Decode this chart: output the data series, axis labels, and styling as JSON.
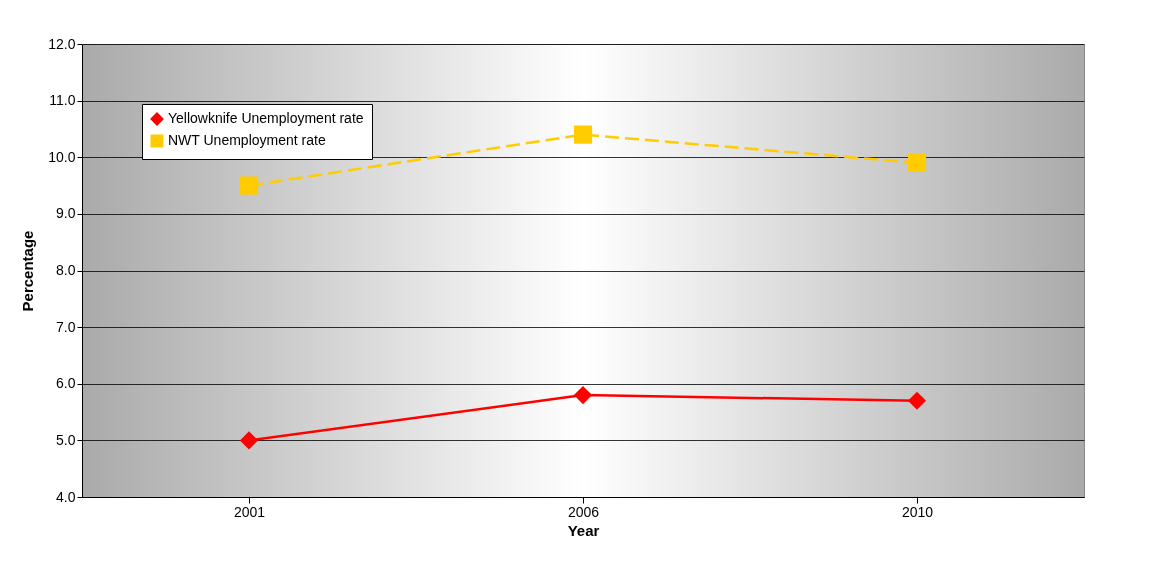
{
  "chart_data": {
    "type": "line",
    "xlabel": "Year",
    "ylabel": "Percentage",
    "categories": [
      "2001",
      "2006",
      "2010"
    ],
    "series": [
      {
        "name": "Yellowknife Unemployment rate",
        "color": "#ff0000",
        "marker": "diamond",
        "line_style": "solid",
        "values": [
          5.0,
          5.8,
          5.7
        ]
      },
      {
        "name": "NWT Unemployment rate",
        "color": "#ffcc00",
        "marker": "square",
        "line_style": "dashed",
        "values": [
          9.5,
          10.4,
          9.9
        ]
      }
    ],
    "ylim": [
      4,
      12
    ],
    "yticks": [
      {
        "value": 4,
        "label": "4.0"
      },
      {
        "value": 5,
        "label": "5.0"
      },
      {
        "value": 6,
        "label": "6.0"
      },
      {
        "value": 7,
        "label": "7.0"
      },
      {
        "value": 8,
        "label": "8.0"
      },
      {
        "value": 9,
        "label": "9.0"
      },
      {
        "value": 10,
        "label": "10.0"
      },
      {
        "value": 11,
        "label": "11.0"
      },
      {
        "value": 12,
        "label": "12.0"
      }
    ],
    "grid": "y",
    "legend": "top left"
  }
}
